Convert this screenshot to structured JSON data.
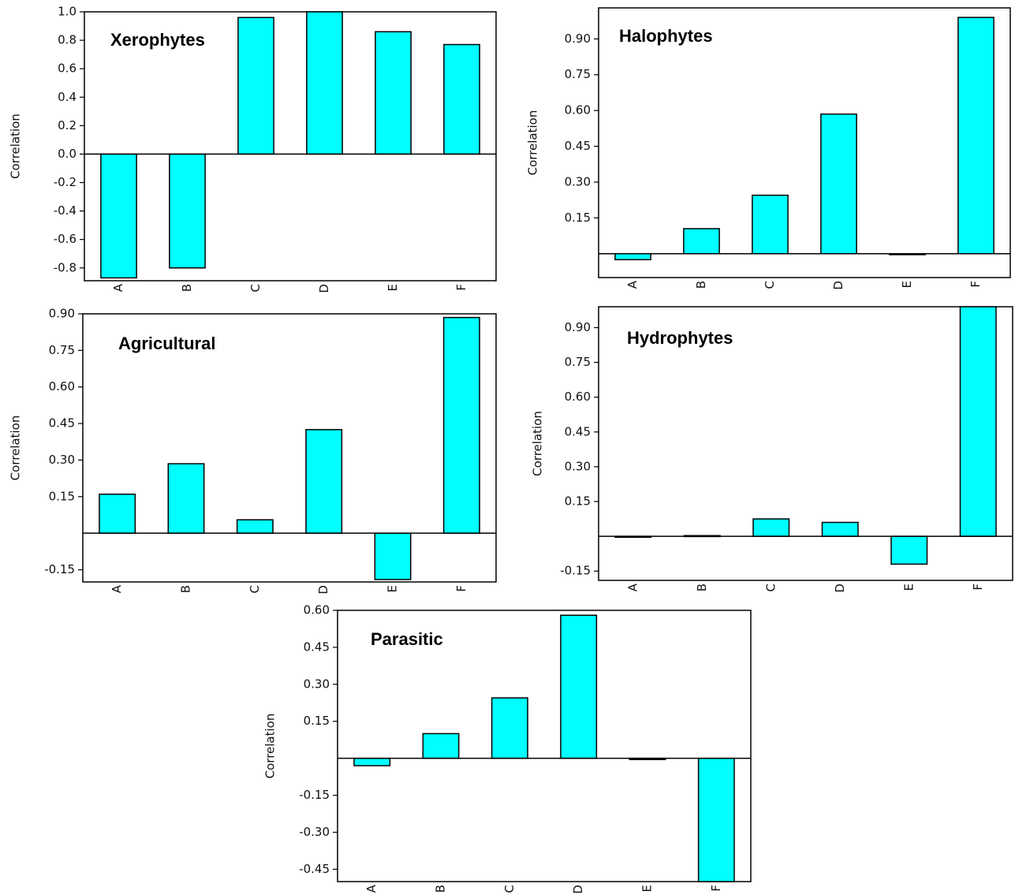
{
  "bar_color": "#00FFFF",
  "chart_data": [
    {
      "type": "bar",
      "title": "Xerophytes",
      "ylabel": "Correlation",
      "categories": [
        "A",
        "B",
        "C",
        "D",
        "E",
        "F"
      ],
      "values": [
        -0.87,
        -0.8,
        0.96,
        1.0,
        0.86,
        0.77
      ],
      "yticks": [
        1.0,
        0.8,
        0.6,
        0.4,
        0.2,
        0.0,
        -0.2,
        -0.4,
        -0.6,
        -0.8
      ],
      "ytick_labels": [
        "1.0",
        "0.8",
        "0.6",
        "0.4",
        "0.2",
        "0.0",
        "-0.2",
        "-0.4",
        "-0.6",
        "-0.8"
      ],
      "ylim": [
        -0.89,
        1.0
      ]
    },
    {
      "type": "bar",
      "title": "Halophytes",
      "ylabel": "Correlation",
      "categories": [
        "A",
        "B",
        "C",
        "D",
        "E",
        "F"
      ],
      "values": [
        -0.025,
        0.105,
        0.245,
        0.585,
        -0.003,
        0.99
      ],
      "yticks": [
        0.9,
        0.75,
        0.6,
        0.45,
        0.3,
        0.15
      ],
      "ytick_labels": [
        "0.90",
        "0.75",
        "0.60",
        "0.45",
        "0.30",
        "0.15"
      ],
      "ylim": [
        -0.1,
        1.03
      ]
    },
    {
      "type": "bar",
      "title": "Agricultural",
      "ylabel": "Correlation",
      "categories": [
        "A",
        "B",
        "C",
        "D",
        "E",
        "F"
      ],
      "values": [
        0.16,
        0.285,
        0.055,
        0.425,
        -0.19,
        0.885
      ],
      "yticks": [
        0.9,
        0.75,
        0.6,
        0.45,
        0.3,
        0.15,
        -0.15
      ],
      "ytick_labels": [
        "0.90",
        "0.75",
        "0.60",
        "0.45",
        "0.30",
        "0.15",
        "-0.15"
      ],
      "ylim": [
        -0.2,
        0.9
      ]
    },
    {
      "type": "bar",
      "title": "Hydrophytes",
      "ylabel": "Correlation",
      "categories": [
        "A",
        "B",
        "C",
        "D",
        "E",
        "F"
      ],
      "values": [
        0.0,
        0.003,
        0.075,
        0.06,
        -0.12,
        0.99
      ],
      "yticks": [
        0.9,
        0.75,
        0.6,
        0.45,
        0.3,
        0.15,
        -0.15
      ],
      "ytick_labels": [
        "0.90",
        "0.75",
        "0.60",
        "0.45",
        "0.30",
        "0.15",
        "-0.15"
      ],
      "ylim": [
        -0.19,
        0.99
      ]
    },
    {
      "type": "bar",
      "title": "Parasitic",
      "ylabel": "Correlation",
      "categories": [
        "A",
        "B",
        "C",
        "D",
        "E",
        "F"
      ],
      "values": [
        -0.03,
        0.1,
        0.245,
        0.58,
        -0.005,
        -0.5
      ],
      "yticks": [
        0.6,
        0.45,
        0.3,
        0.15,
        -0.15,
        -0.3,
        -0.45
      ],
      "ytick_labels": [
        "0.60",
        "0.45",
        "0.30",
        "0.15",
        "-0.15",
        "-0.30",
        "-0.45"
      ],
      "ylim": [
        -0.5,
        0.6
      ]
    }
  ]
}
